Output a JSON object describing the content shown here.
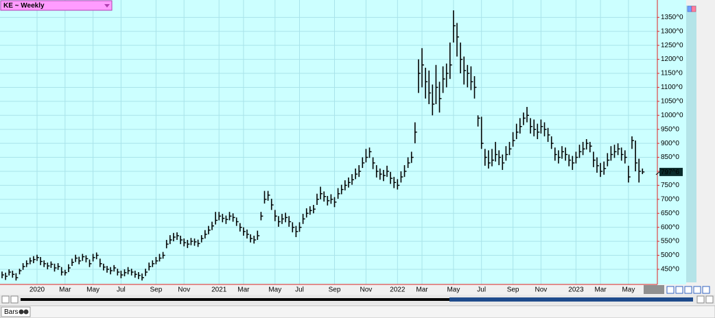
{
  "chart_data": {
    "type": "hlc",
    "title": "KE ~ Weekly",
    "color": "#000000",
    "grid": true,
    "ylim": [
      396,
      1412
    ],
    "yticks": [
      {
        "value": 450,
        "label": "450^0"
      },
      {
        "value": 500,
        "label": "500^0"
      },
      {
        "value": 550,
        "label": "550^0"
      },
      {
        "value": 600,
        "label": "600^0"
      },
      {
        "value": 650,
        "label": "650^0"
      },
      {
        "value": 700,
        "label": "700^0"
      },
      {
        "value": 750,
        "label": "750^0"
      },
      {
        "value": 800,
        "label": "800^0"
      },
      {
        "value": 850,
        "label": "850^0"
      },
      {
        "value": 900,
        "label": "900^0"
      },
      {
        "value": 950,
        "label": "950^0"
      },
      {
        "value": 1000,
        "label": "1000^0"
      },
      {
        "value": 1050,
        "label": "1050^0"
      },
      {
        "value": 1100,
        "label": "1100^0"
      },
      {
        "value": 1150,
        "label": "1150^0"
      },
      {
        "value": 1200,
        "label": "1200^0"
      },
      {
        "value": 1250,
        "label": "1250^0"
      },
      {
        "value": 1300,
        "label": "1300^0"
      },
      {
        "value": 1350,
        "label": "1350^0"
      }
    ],
    "last_price": {
      "value": 797.75,
      "label": "797^6"
    },
    "categories": [
      null,
      null,
      null,
      null,
      null,
      null,
      null,
      null,
      null,
      null,
      "2020",
      null,
      null,
      null,
      null,
      null,
      null,
      null,
      "Mar",
      null,
      null,
      null,
      null,
      null,
      null,
      null,
      "May",
      null,
      null,
      null,
      null,
      null,
      null,
      null,
      "Jul",
      null,
      null,
      null,
      null,
      null,
      null,
      null,
      null,
      null,
      "Sep",
      null,
      null,
      null,
      null,
      null,
      null,
      null,
      "Nov",
      null,
      null,
      null,
      null,
      null,
      null,
      null,
      null,
      null,
      "2021",
      null,
      null,
      null,
      null,
      null,
      null,
      "Mar",
      null,
      null,
      null,
      null,
      null,
      null,
      null,
      null,
      "May",
      null,
      null,
      null,
      null,
      null,
      null,
      "Jul",
      null,
      null,
      null,
      null,
      null,
      null,
      null,
      null,
      null,
      "Sep",
      null,
      null,
      null,
      null,
      null,
      null,
      null,
      null,
      "Nov",
      null,
      null,
      null,
      null,
      null,
      null,
      null,
      null,
      "2022",
      null,
      null,
      null,
      null,
      null,
      null,
      "Mar",
      null,
      null,
      null,
      null,
      null,
      null,
      null,
      null,
      "May",
      null,
      null,
      null,
      null,
      null,
      null,
      null,
      "Jul",
      null,
      null,
      null,
      null,
      null,
      null,
      null,
      null,
      "Sep",
      null,
      null,
      null,
      null,
      null,
      null,
      null,
      "Nov",
      null,
      null,
      null,
      null,
      null,
      null,
      null,
      null,
      null,
      "2023",
      null,
      null,
      null,
      null,
      null,
      null,
      "Mar",
      null,
      null,
      null,
      null,
      null,
      null,
      null,
      "May",
      null,
      null,
      null,
      null
    ],
    "high": [
      442,
      438,
      450,
      445,
      436,
      452,
      472,
      482,
      492,
      497,
      502,
      494,
      482,
      474,
      478,
      470,
      472,
      458,
      448,
      468,
      488,
      502,
      495,
      505,
      500,
      485,
      505,
      510,
      488,
      470,
      462,
      458,
      465,
      452,
      445,
      450,
      458,
      452,
      445,
      440,
      435,
      452,
      474,
      482,
      494,
      505,
      512,
      555,
      572,
      580,
      582,
      570,
      560,
      555,
      562,
      560,
      556,
      572,
      590,
      605,
      620,
      655,
      655,
      648,
      642,
      655,
      650,
      635,
      615,
      600,
      592,
      575,
      570,
      588,
      655,
      730,
      730,
      702,
      662,
      640,
      648,
      652,
      640,
      618,
      605,
      618,
      648,
      668,
      675,
      680,
      720,
      745,
      728,
      712,
      718,
      708,
      740,
      752,
      768,
      778,
      790,
      810,
      822,
      850,
      880,
      885,
      850,
      822,
      810,
      805,
      820,
      798,
      780,
      772,
      800,
      822,
      850,
      870,
      975,
      1200,
      1240,
      1170,
      1160,
      1110,
      1180,
      1120,
      1175,
      1185,
      1260,
      1375,
      1330,
      1260,
      1210,
      1180,
      1175,
      1140,
      1000,
      995,
      880,
      875,
      880,
      905,
      875,
      860,
      890,
      905,
      940,
      970,
      990,
      1010,
      1030,
      990,
      985,
      970,
      985,
      975,
      955,
      925,
      885,
      875,
      890,
      885,
      860,
      855,
      870,
      895,
      905,
      915,
      905,
      870,
      850,
      830,
      835,
      865,
      890,
      895,
      900,
      885,
      875,
      820,
      925,
      910,
      845,
      810
    ],
    "low": [
      418,
      412,
      428,
      420,
      410,
      432,
      448,
      458,
      468,
      472,
      480,
      465,
      458,
      450,
      455,
      442,
      448,
      428,
      428,
      440,
      462,
      476,
      468,
      480,
      475,
      458,
      478,
      486,
      458,
      446,
      438,
      432,
      442,
      428,
      418,
      425,
      432,
      428,
      420,
      415,
      410,
      426,
      446,
      458,
      468,
      478,
      488,
      525,
      540,
      550,
      555,
      540,
      532,
      526,
      536,
      534,
      530,
      546,
      560,
      575,
      590,
      610,
      625,
      618,
      612,
      625,
      620,
      605,
      585,
      570,
      560,
      546,
      542,
      555,
      625,
      685,
      695,
      662,
      622,
      602,
      612,
      618,
      602,
      582,
      565,
      584,
      612,
      635,
      645,
      650,
      680,
      700,
      692,
      678,
      684,
      672,
      702,
      718,
      732,
      742,
      752,
      772,
      780,
      812,
      832,
      848,
      808,
      778,
      770,
      765,
      780,
      755,
      740,
      735,
      760,
      780,
      812,
      830,
      900,
      1080,
      1100,
      1060,
      1040,
      1000,
      1040,
      1010,
      1080,
      1100,
      1130,
      1260,
      1210,
      1150,
      1110,
      1100,
      1090,
      1060,
      960,
      880,
      820,
      810,
      818,
      835,
      822,
      805,
      838,
      858,
      888,
      915,
      935,
      965,
      975,
      935,
      925,
      915,
      935,
      925,
      905,
      880,
      838,
      828,
      845,
      838,
      818,
      805,
      828,
      848,
      858,
      878,
      868,
      815,
      795,
      780,
      788,
      818,
      838,
      848,
      858,
      838,
      828,
      760,
      880,
      800,
      760,
      790
    ],
    "close": [
      430,
      425,
      440,
      432,
      420,
      445,
      460,
      470,
      480,
      485,
      492,
      478,
      470,
      462,
      468,
      455,
      460,
      440,
      438,
      455,
      475,
      490,
      480,
      495,
      488,
      470,
      492,
      500,
      470,
      458,
      450,
      445,
      455,
      440,
      430,
      438,
      445,
      440,
      432,
      428,
      420,
      440,
      460,
      470,
      480,
      490,
      500,
      540,
      555,
      565,
      570,
      555,
      545,
      540,
      550,
      548,
      542,
      560,
      575,
      590,
      605,
      625,
      640,
      632,
      628,
      640,
      635,
      620,
      600,
      585,
      575,
      560,
      555,
      570,
      640,
      700,
      715,
      680,
      640,
      620,
      630,
      635,
      620,
      600,
      585,
      600,
      630,
      650,
      660,
      665,
      700,
      720,
      710,
      695,
      700,
      690,
      720,
      735,
      750,
      760,
      770,
      790,
      800,
      830,
      850,
      870,
      830,
      800,
      790,
      785,
      800,
      775,
      760,
      750,
      780,
      800,
      830,
      850,
      940,
      1150,
      1180,
      1120,
      1080,
      1040,
      1100,
      1060,
      1130,
      1150,
      1180,
      1320,
      1280,
      1200,
      1160,
      1150,
      1120,
      1100,
      990,
      900,
      850,
      830,
      840,
      860,
      850,
      830,
      860,
      880,
      910,
      940,
      960,
      990,
      1000,
      960,
      950,
      940,
      960,
      950,
      930,
      900,
      860,
      850,
      870,
      860,
      840,
      830,
      850,
      870,
      880,
      900,
      890,
      840,
      820,
      800,
      810,
      840,
      860,
      870,
      880,
      860,
      850,
      780,
      910,
      830,
      800,
      797.75
    ]
  },
  "footer": {
    "tab": "Bars"
  }
}
